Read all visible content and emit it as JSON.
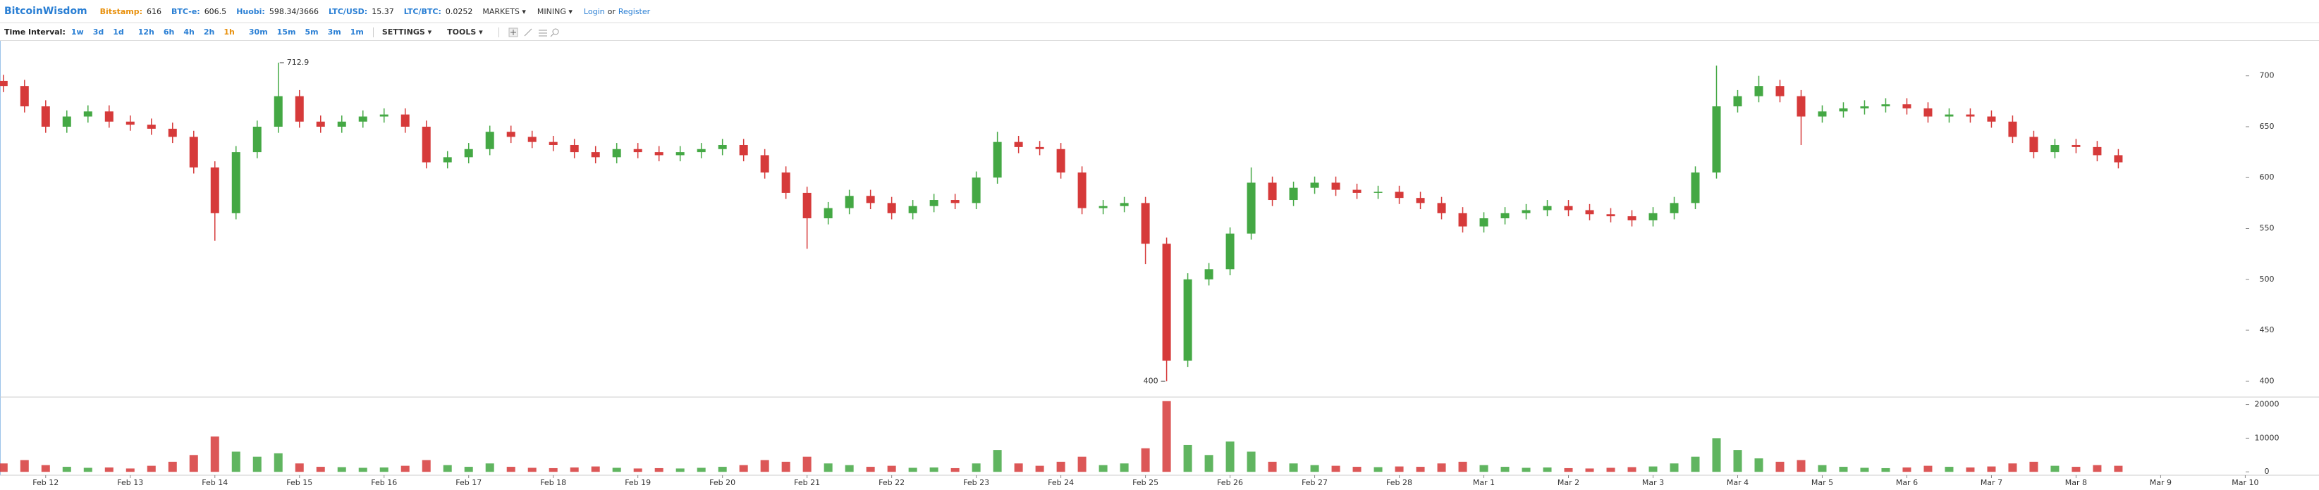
{
  "header": {
    "logo": "BitcoinWisdom",
    "tickers": [
      {
        "label": "Bitstamp:",
        "value": "616"
      },
      {
        "label": "BTC-e:",
        "value": "606.5"
      },
      {
        "label": "Huobi:",
        "value": "598.34/3666"
      },
      {
        "label": "LTC/USD:",
        "value": "15.37"
      },
      {
        "label": "LTC/BTC:",
        "value": "0.0252"
      }
    ],
    "menus": [
      "MARKETS",
      "MINING"
    ],
    "login": "Login",
    "or": "or",
    "register": "Register"
  },
  "toolbar": {
    "label": "Time Interval:",
    "intervals": [
      "1w",
      "3d",
      "1d",
      "12h",
      "6h",
      "4h",
      "2h",
      "1h",
      "30m",
      "15m",
      "5m",
      "3m",
      "1m"
    ],
    "selected_interval": "1h",
    "menus": [
      "SETTINGS",
      "TOOLS"
    ]
  },
  "chart_data": {
    "type": "candlestick",
    "x": [
      -0.5,
      -0.25,
      0,
      0.25,
      0.5,
      0.75,
      1,
      1.25,
      1.5,
      1.75,
      2,
      2.25,
      2.5,
      2.75,
      3,
      3.25,
      3.5,
      3.75,
      4,
      4.25,
      4.5,
      4.75,
      5,
      5.25,
      5.5,
      5.75,
      6,
      6.25,
      6.5,
      6.75,
      7,
      7.25,
      7.5,
      7.75,
      8,
      8.25,
      8.5,
      8.75,
      9,
      9.25,
      9.5,
      9.75,
      10,
      10.25,
      10.5,
      10.75,
      11,
      11.25,
      11.5,
      11.75,
      12,
      12.25,
      12.5,
      12.75,
      13,
      13.25,
      13.5,
      13.75,
      14,
      14.25,
      14.5,
      14.75,
      15,
      15.25,
      15.5,
      15.75,
      16,
      16.25,
      16.5,
      16.75,
      17,
      17.25,
      17.5,
      17.75,
      18,
      18.25,
      18.5,
      18.75,
      19,
      19.25,
      19.5,
      19.75,
      20,
      20.25,
      20.5,
      20.75,
      21,
      21.25,
      21.5,
      21.75,
      22,
      22.25,
      22.5,
      22.75,
      23,
      23.25,
      23.5,
      23.75,
      24,
      24.25,
      24.5
    ],
    "open": [
      695,
      690,
      670,
      650,
      660,
      665,
      655,
      652,
      648,
      640,
      610,
      565,
      625,
      650,
      680,
      655,
      650,
      655,
      660,
      662,
      650,
      615,
      620,
      628,
      645,
      640,
      635,
      632,
      625,
      620,
      628,
      625,
      622,
      625,
      628,
      632,
      622,
      605,
      585,
      560,
      570,
      582,
      575,
      565,
      572,
      578,
      575,
      600,
      635,
      630,
      628,
      605,
      570,
      572,
      575,
      535,
      420,
      500,
      510,
      545,
      595,
      578,
      590,
      595,
      588,
      585,
      586,
      580,
      575,
      565,
      552,
      560,
      565,
      568,
      572,
      568,
      564,
      562,
      558,
      565,
      575,
      605,
      670,
      680,
      690,
      680,
      660,
      665,
      668,
      670,
      672,
      668,
      660,
      662,
      660,
      655,
      640,
      625,
      632,
      630,
      622
    ],
    "high": [
      701,
      696,
      676,
      666,
      671,
      671,
      661,
      658,
      654,
      646,
      616,
      631,
      656,
      712.9,
      686,
      661,
      661,
      666,
      668,
      668,
      656,
      626,
      634,
      651,
      651,
      646,
      641,
      638,
      631,
      634,
      634,
      631,
      631,
      634,
      638,
      638,
      628,
      611,
      591,
      576,
      588,
      588,
      581,
      578,
      584,
      584,
      606,
      645,
      641,
      636,
      634,
      611,
      578,
      581,
      581,
      541,
      506,
      516,
      551,
      610,
      601,
      596,
      601,
      601,
      594,
      592,
      592,
      586,
      581,
      571,
      566,
      571,
      574,
      578,
      578,
      574,
      570,
      568,
      571,
      581,
      611,
      710,
      686,
      700,
      696,
      686,
      671,
      674,
      676,
      678,
      678,
      674,
      668,
      668,
      666,
      661,
      646,
      638,
      638,
      636,
      628
    ],
    "low": [
      684,
      664,
      644,
      644,
      654,
      649,
      646,
      642,
      634,
      604,
      538,
      559,
      619,
      644,
      649,
      644,
      644,
      649,
      654,
      644,
      609,
      609,
      614,
      622,
      634,
      629,
      626,
      619,
      614,
      614,
      619,
      616,
      616,
      619,
      622,
      616,
      599,
      579,
      530,
      554,
      564,
      569,
      559,
      559,
      566,
      569,
      569,
      594,
      624,
      622,
      599,
      564,
      564,
      566,
      515,
      400,
      414,
      494,
      504,
      539,
      572,
      572,
      584,
      582,
      579,
      579,
      574,
      569,
      559,
      546,
      546,
      554,
      559,
      562,
      562,
      558,
      556,
      552,
      552,
      559,
      569,
      599,
      664,
      674,
      674,
      632,
      654,
      659,
      662,
      664,
      662,
      654,
      654,
      654,
      649,
      634,
      619,
      619,
      624,
      616,
      609
    ],
    "close": [
      690,
      670,
      650,
      660,
      665,
      655,
      652,
      648,
      640,
      610,
      565,
      625,
      650,
      680,
      655,
      650,
      655,
      660,
      662,
      650,
      615,
      620,
      628,
      645,
      640,
      635,
      632,
      625,
      620,
      628,
      625,
      622,
      625,
      628,
      632,
      622,
      605,
      585,
      560,
      570,
      582,
      575,
      565,
      572,
      578,
      575,
      600,
      635,
      630,
      628,
      605,
      570,
      572,
      575,
      535,
      420,
      500,
      510,
      545,
      595,
      578,
      590,
      595,
      588,
      585,
      586,
      580,
      575,
      565,
      552,
      560,
      565,
      568,
      572,
      568,
      564,
      562,
      558,
      565,
      575,
      605,
      670,
      680,
      690,
      680,
      660,
      665,
      668,
      670,
      672,
      668,
      660,
      662,
      660,
      655,
      640,
      625,
      632,
      630,
      622,
      615
    ],
    "volume": [
      2500,
      3500,
      2000,
      1500,
      1200,
      1300,
      1000,
      1800,
      3000,
      5000,
      10500,
      6000,
      4500,
      5500,
      2500,
      1500,
      1400,
      1200,
      1300,
      1800,
      3500,
      2000,
      1500,
      2500,
      1500,
      1200,
      1100,
      1300,
      1600,
      1200,
      1000,
      1100,
      1000,
      1200,
      1500,
      2000,
      3500,
      3000,
      4500,
      2500,
      2000,
      1500,
      1800,
      1200,
      1300,
      1100,
      2500,
      6500,
      2500,
      1800,
      3000,
      4500,
      2000,
      2500,
      7000,
      21000,
      8000,
      5000,
      9000,
      6000,
      3000,
      2500,
      2000,
      1800,
      1500,
      1400,
      1600,
      1500,
      2500,
      3000,
      2000,
      1500,
      1200,
      1300,
      1100,
      1000,
      1200,
      1400,
      1600,
      2500,
      4500,
      10000,
      6500,
      4000,
      3000,
      3500,
      2000,
      1500,
      1200,
      1100,
      1300,
      1800,
      1500,
      1300,
      1600,
      2500,
      3000,
      1800,
      1500,
      2000,
      1800
    ],
    "up_color": "#44a844",
    "down_color": "#d63a3a",
    "xlim": [
      -0.54,
      26.13
    ],
    "xticks": [
      {
        "value": 0,
        "label": "Feb 12"
      },
      {
        "value": 1,
        "label": "Feb 13"
      },
      {
        "value": 2,
        "label": "Feb 14"
      },
      {
        "value": 3,
        "label": "Feb 15"
      },
      {
        "value": 4,
        "label": "Feb 16"
      },
      {
        "value": 5,
        "label": "Feb 17"
      },
      {
        "value": 6,
        "label": "Feb 18"
      },
      {
        "value": 7,
        "label": "Feb 19"
      },
      {
        "value": 8,
        "label": "Feb 20"
      },
      {
        "value": 9,
        "label": "Feb 21"
      },
      {
        "value": 10,
        "label": "Feb 22"
      },
      {
        "value": 11,
        "label": "Feb 23"
      },
      {
        "value": 12,
        "label": "Feb 24"
      },
      {
        "value": 13,
        "label": "Feb 25"
      },
      {
        "value": 14,
        "label": "Feb 26"
      },
      {
        "value": 15,
        "label": "Feb 27"
      },
      {
        "value": 16,
        "label": "Feb 28"
      },
      {
        "value": 17,
        "label": "Mar 1"
      },
      {
        "value": 18,
        "label": "Mar 2"
      },
      {
        "value": 19,
        "label": "Mar 3"
      },
      {
        "value": 20,
        "label": "Mar 4"
      },
      {
        "value": 21,
        "label": "Mar 5"
      },
      {
        "value": 22,
        "label": "Mar 6"
      },
      {
        "value": 23,
        "label": "Mar 7"
      },
      {
        "value": 24,
        "label": "Mar 8"
      },
      {
        "value": 25,
        "label": "Mar 9"
      },
      {
        "value": 26,
        "label": "Mar 10"
      }
    ],
    "ylim": [
      385,
      733
    ],
    "yticks": [
      400,
      450,
      500,
      550,
      600,
      650,
      700
    ],
    "volume_ylim": [
      -1000,
      22000
    ],
    "volume_yticks": [
      0,
      10000,
      20000
    ]
  }
}
